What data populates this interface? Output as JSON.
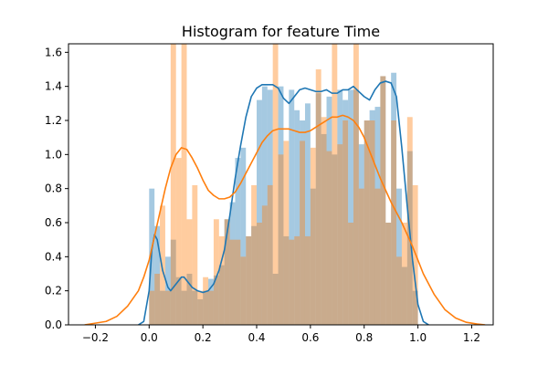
{
  "chart_data": {
    "type": "histogram",
    "title": "Histogram for feature Time",
    "xlabel": "",
    "ylabel": "",
    "xlim": [
      -0.3,
      1.28
    ],
    "ylim": [
      0.0,
      1.65
    ],
    "x_ticks": [
      -0.2,
      0.0,
      0.2,
      0.4,
      0.6,
      0.8,
      1.0,
      1.2
    ],
    "x_tick_labels": [
      "−0.2",
      "0.0",
      "0.2",
      "0.4",
      "0.6",
      "0.8",
      "1.0",
      "1.2"
    ],
    "y_ticks": [
      0.0,
      0.2,
      0.4,
      0.6,
      0.8,
      1.0,
      1.2,
      1.4,
      1.6
    ],
    "y_tick_labels": [
      "0.0",
      "0.2",
      "0.4",
      "0.6",
      "0.8",
      "1.0",
      "1.2",
      "1.4",
      "1.6"
    ],
    "grid": false,
    "legend": "none",
    "series": [
      {
        "color": "#1f77b4",
        "bar_color": "#1f77b4",
        "bar_alpha": 0.4,
        "bin_edges": [
          0.0,
          0.02,
          0.04,
          0.06,
          0.08,
          0.1,
          0.12,
          0.14,
          0.16,
          0.18,
          0.2,
          0.22,
          0.24,
          0.26,
          0.28,
          0.3,
          0.32,
          0.34,
          0.36,
          0.38,
          0.4,
          0.42,
          0.44,
          0.46,
          0.48,
          0.5,
          0.52,
          0.54,
          0.56,
          0.58,
          0.6,
          0.62,
          0.64,
          0.66,
          0.68,
          0.7,
          0.72,
          0.74,
          0.76,
          0.78,
          0.8,
          0.82,
          0.84,
          0.86,
          0.88,
          0.9,
          0.92,
          0.94,
          0.96,
          0.98,
          1.0
        ],
        "hist_values": [
          0.8,
          0.58,
          0.2,
          0.4,
          0.5,
          0.28,
          0.2,
          0.3,
          0.2,
          0.15,
          0.2,
          0.27,
          0.29,
          0.35,
          0.62,
          0.72,
          0.98,
          1.04,
          0.52,
          0.58,
          1.32,
          1.4,
          1.38,
          0.3,
          1.4,
          0.52,
          1.38,
          1.26,
          1.2,
          1.3,
          0.8,
          1.36,
          1.12,
          1.34,
          1.0,
          1.38,
          1.32,
          1.38,
          1.38,
          1.06,
          1.2,
          1.26,
          1.28,
          1.46,
          0.6,
          1.48,
          0.8,
          0.34,
          1.02,
          0.2
        ],
        "kde_x": [
          -0.04,
          -0.02,
          0.0,
          0.01,
          0.02,
          0.03,
          0.05,
          0.07,
          0.08,
          0.1,
          0.12,
          0.13,
          0.14,
          0.16,
          0.18,
          0.2,
          0.22,
          0.24,
          0.26,
          0.28,
          0.3,
          0.32,
          0.34,
          0.36,
          0.38,
          0.4,
          0.42,
          0.44,
          0.46,
          0.48,
          0.5,
          0.52,
          0.54,
          0.56,
          0.58,
          0.6,
          0.62,
          0.64,
          0.66,
          0.68,
          0.7,
          0.72,
          0.74,
          0.76,
          0.78,
          0.8,
          0.82,
          0.84,
          0.86,
          0.88,
          0.9,
          0.92,
          0.94,
          0.96,
          0.98,
          1.0,
          1.02,
          1.04
        ],
        "kde_y": [
          0.0,
          0.02,
          0.2,
          0.44,
          0.53,
          0.5,
          0.32,
          0.22,
          0.2,
          0.24,
          0.28,
          0.28,
          0.26,
          0.22,
          0.2,
          0.19,
          0.2,
          0.24,
          0.32,
          0.44,
          0.64,
          0.86,
          1.05,
          1.22,
          1.34,
          1.39,
          1.41,
          1.41,
          1.41,
          1.39,
          1.33,
          1.3,
          1.34,
          1.38,
          1.39,
          1.38,
          1.37,
          1.37,
          1.38,
          1.36,
          1.36,
          1.38,
          1.38,
          1.4,
          1.37,
          1.34,
          1.32,
          1.38,
          1.42,
          1.43,
          1.42,
          1.34,
          1.04,
          0.7,
          0.38,
          0.12,
          0.02,
          0.0
        ]
      },
      {
        "color": "#ff7f0e",
        "bar_color": "#ff7f0e",
        "bar_alpha": 0.4,
        "bin_edges": [
          0.0,
          0.02,
          0.04,
          0.06,
          0.08,
          0.1,
          0.12,
          0.14,
          0.16,
          0.18,
          0.2,
          0.22,
          0.24,
          0.26,
          0.28,
          0.3,
          0.32,
          0.34,
          0.36,
          0.38,
          0.4,
          0.42,
          0.44,
          0.46,
          0.48,
          0.5,
          0.52,
          0.54,
          0.56,
          0.58,
          0.6,
          0.62,
          0.64,
          0.66,
          0.68,
          0.7,
          0.72,
          0.74,
          0.76,
          0.78,
          0.8,
          0.82,
          0.84,
          0.86,
          0.88,
          0.9,
          0.92,
          0.94,
          0.96,
          0.98,
          1.0
        ],
        "hist_values": [
          0.2,
          0.3,
          0.7,
          0.2,
          1.65,
          0.98,
          1.65,
          0.62,
          0.82,
          0.2,
          0.28,
          0.2,
          0.62,
          0.52,
          0.62,
          0.5,
          0.5,
          0.4,
          0.52,
          0.82,
          0.6,
          0.7,
          0.82,
          1.65,
          1.0,
          1.08,
          0.5,
          0.52,
          1.08,
          0.52,
          1.04,
          1.5,
          1.22,
          1.02,
          1.65,
          1.06,
          1.2,
          0.6,
          1.65,
          0.8,
          1.2,
          1.2,
          0.8,
          1.46,
          0.6,
          1.2,
          0.4,
          0.6,
          1.22,
          0.82
        ],
        "kde_x": [
          -0.24,
          -0.2,
          -0.16,
          -0.12,
          -0.08,
          -0.04,
          -0.02,
          0.0,
          0.02,
          0.04,
          0.06,
          0.08,
          0.1,
          0.12,
          0.14,
          0.16,
          0.18,
          0.2,
          0.22,
          0.24,
          0.26,
          0.28,
          0.3,
          0.32,
          0.34,
          0.36,
          0.38,
          0.4,
          0.42,
          0.44,
          0.46,
          0.48,
          0.5,
          0.52,
          0.54,
          0.56,
          0.58,
          0.6,
          0.62,
          0.64,
          0.66,
          0.68,
          0.7,
          0.72,
          0.74,
          0.76,
          0.78,
          0.8,
          0.82,
          0.84,
          0.86,
          0.88,
          0.9,
          0.92,
          0.94,
          0.96,
          0.98,
          1.0,
          1.02,
          1.06,
          1.1,
          1.14,
          1.18,
          1.22,
          1.25
        ],
        "kde_y": [
          0.0,
          0.01,
          0.02,
          0.05,
          0.11,
          0.2,
          0.28,
          0.38,
          0.52,
          0.66,
          0.8,
          0.92,
          1.0,
          1.04,
          1.03,
          0.98,
          0.92,
          0.85,
          0.79,
          0.76,
          0.74,
          0.74,
          0.75,
          0.78,
          0.83,
          0.89,
          0.95,
          1.01,
          1.07,
          1.11,
          1.14,
          1.15,
          1.15,
          1.15,
          1.14,
          1.13,
          1.13,
          1.14,
          1.16,
          1.18,
          1.2,
          1.22,
          1.22,
          1.23,
          1.22,
          1.2,
          1.16,
          1.1,
          1.02,
          0.94,
          0.86,
          0.79,
          0.72,
          0.66,
          0.6,
          0.53,
          0.46,
          0.38,
          0.3,
          0.18,
          0.09,
          0.04,
          0.015,
          0.005,
          0.0
        ]
      }
    ]
  }
}
